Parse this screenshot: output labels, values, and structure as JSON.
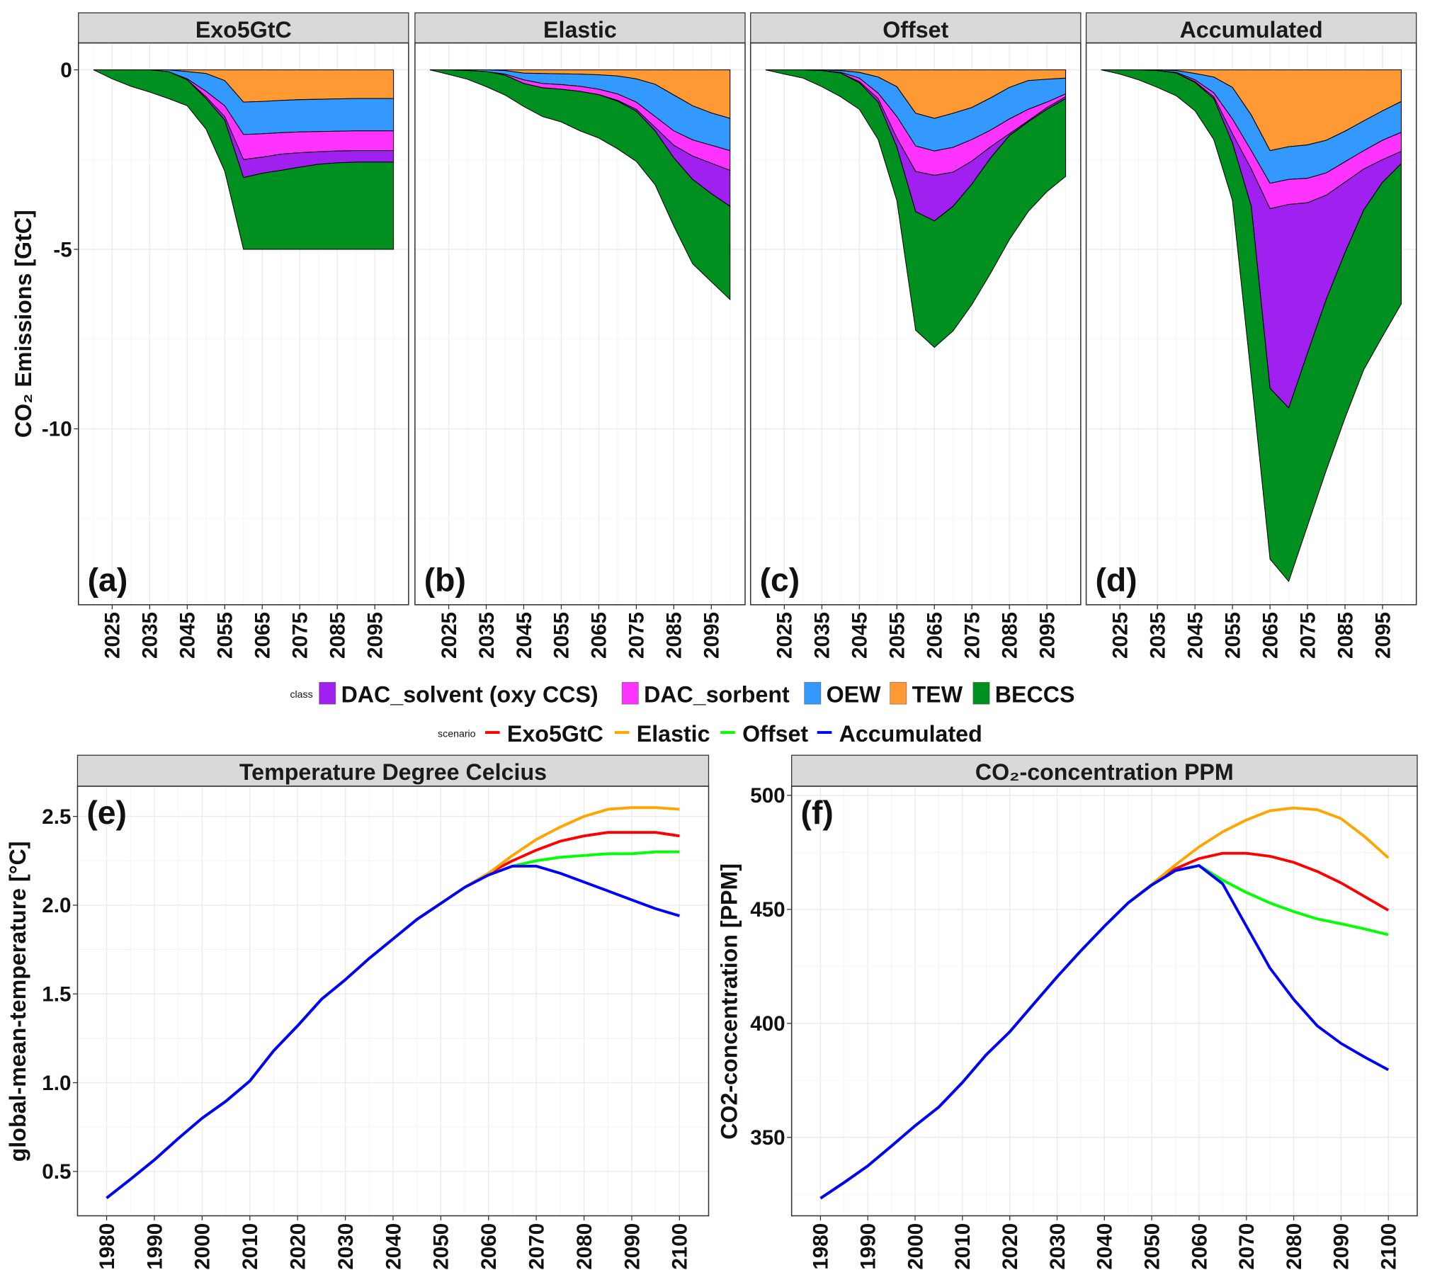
{
  "legend": {
    "class_title": "class",
    "class_items": [
      {
        "name": "DAC_solvent (oxy CCS)",
        "color": "#A020F0"
      },
      {
        "name": "DAC_sorbent",
        "color": "#FF33FF"
      },
      {
        "name": "OEW",
        "color": "#3399FF"
      },
      {
        "name": "TEW",
        "color": "#FF9933"
      },
      {
        "name": "BECCS",
        "color": "#009020"
      }
    ],
    "scenario_title": "scenario",
    "scenario_items": [
      {
        "name": "Exo5GtC",
        "color": "#FF0000"
      },
      {
        "name": "Elastic",
        "color": "#FFA500"
      },
      {
        "name": "Offset",
        "color": "#00FF00"
      },
      {
        "name": "Accumulated",
        "color": "#0000FF"
      }
    ]
  },
  "top_ylabel": "CO₂ Emissions [GtC]",
  "chart_data": [
    {
      "type": "area",
      "stacked": true,
      "title": "Exo5GtC",
      "panel_label": "(a)",
      "x": [
        2020,
        2025,
        2030,
        2035,
        2040,
        2045,
        2050,
        2055,
        2060,
        2065,
        2070,
        2075,
        2080,
        2085,
        2090,
        2095,
        2100
      ],
      "xticks": [
        "2025",
        "2035",
        "2045",
        "2055",
        "2065",
        "2075",
        "2085",
        "2095"
      ],
      "yticks": [
        "0",
        "-5",
        "-10"
      ],
      "ylim": [
        -14.9,
        0.75
      ],
      "grid": true,
      "series": [
        {
          "name": "TEW",
          "values": [
            0,
            0,
            0,
            0,
            0,
            -0.05,
            -0.1,
            -0.3,
            -0.9,
            -0.88,
            -0.85,
            -0.83,
            -0.82,
            -0.81,
            -0.8,
            -0.8,
            -0.8
          ]
        },
        {
          "name": "OEW",
          "values": [
            0,
            0,
            0,
            0,
            -0.05,
            -0.2,
            -0.5,
            -0.7,
            -0.9,
            -0.9,
            -0.9,
            -0.9,
            -0.9,
            -0.9,
            -0.9,
            -0.9,
            -0.9
          ]
        },
        {
          "name": "DAC_sorbent",
          "values": [
            0,
            0,
            0,
            0,
            0,
            -0.03,
            -0.15,
            -0.3,
            -0.7,
            -0.65,
            -0.6,
            -0.58,
            -0.56,
            -0.55,
            -0.55,
            -0.55,
            -0.55
          ]
        },
        {
          "name": "DAC_solvent (oxy CCS)",
          "values": [
            0,
            0,
            0,
            0,
            0,
            0,
            -0.05,
            -0.1,
            -0.5,
            -0.45,
            -0.45,
            -0.4,
            -0.35,
            -0.33,
            -0.32,
            -0.32,
            -0.32
          ]
        },
        {
          "name": "BECCS",
          "values": [
            0,
            -0.25,
            -0.46,
            -0.62,
            -0.75,
            -0.72,
            -0.85,
            -1.42,
            -2.0,
            -2.12,
            -2.2,
            -2.29,
            -2.37,
            -2.41,
            -2.43,
            -2.43,
            -2.43
          ]
        }
      ]
    },
    {
      "type": "area",
      "stacked": true,
      "title": "Elastic",
      "panel_label": "(b)",
      "x": [
        2020,
        2025,
        2030,
        2035,
        2040,
        2045,
        2050,
        2055,
        2060,
        2065,
        2070,
        2075,
        2080,
        2085,
        2090,
        2095,
        2100
      ],
      "xticks": [
        "2025",
        "2035",
        "2045",
        "2055",
        "2065",
        "2075",
        "2085",
        "2095"
      ],
      "ylim": [
        -14.9,
        0.75
      ],
      "grid": true,
      "series": [
        {
          "name": "TEW",
          "values": [
            0,
            0,
            0,
            0,
            -0.02,
            -0.09,
            -0.1,
            -0.11,
            -0.12,
            -0.14,
            -0.17,
            -0.25,
            -0.4,
            -0.7,
            -1.0,
            -1.2,
            -1.35
          ]
        },
        {
          "name": "OEW",
          "values": [
            0,
            0,
            -0.02,
            -0.05,
            -0.1,
            -0.19,
            -0.28,
            -0.3,
            -0.34,
            -0.4,
            -0.5,
            -0.65,
            -0.9,
            -1.0,
            -0.95,
            -0.9,
            -0.9
          ]
        },
        {
          "name": "DAC_sorbent",
          "values": [
            0,
            0,
            0,
            0,
            -0.03,
            -0.1,
            -0.12,
            -0.13,
            -0.14,
            -0.15,
            -0.18,
            -0.2,
            -0.3,
            -0.4,
            -0.45,
            -0.5,
            -0.55
          ]
        },
        {
          "name": "DAC_solvent (oxy CCS)",
          "values": [
            0,
            0,
            0,
            0,
            0,
            0,
            0,
            0,
            0,
            0,
            -0.02,
            -0.05,
            -0.1,
            -0.35,
            -0.65,
            -0.85,
            -1.0
          ]
        },
        {
          "name": "BECCS",
          "values": [
            0,
            -0.13,
            -0.24,
            -0.42,
            -0.55,
            -0.64,
            -0.8,
            -0.91,
            -1.1,
            -1.21,
            -1.33,
            -1.4,
            -1.5,
            -1.9,
            -2.35,
            -2.45,
            -2.6
          ]
        }
      ]
    },
    {
      "type": "area",
      "stacked": true,
      "title": "Offset",
      "panel_label": "(c)",
      "x": [
        2020,
        2025,
        2030,
        2035,
        2040,
        2045,
        2050,
        2055,
        2060,
        2065,
        2070,
        2075,
        2080,
        2085,
        2090,
        2095,
        2100
      ],
      "xticks": [
        "2025",
        "2035",
        "2045",
        "2055",
        "2065",
        "2075",
        "2085",
        "2095"
      ],
      "ylim": [
        -14.9,
        0.75
      ],
      "grid": true,
      "series": [
        {
          "name": "TEW",
          "values": [
            0,
            0,
            0,
            0,
            -0.02,
            -0.07,
            -0.2,
            -0.47,
            -1.21,
            -1.35,
            -1.21,
            -1.05,
            -0.78,
            -0.49,
            -0.3,
            -0.26,
            -0.23
          ]
        },
        {
          "name": "OEW",
          "values": [
            0,
            0,
            0,
            -0.02,
            -0.05,
            -0.16,
            -0.45,
            -0.83,
            -0.91,
            -0.91,
            -0.95,
            -0.89,
            -0.9,
            -0.88,
            -0.8,
            -0.64,
            -0.44
          ]
        },
        {
          "name": "DAC_sorbent",
          "values": [
            0,
            0,
            0,
            0,
            -0.02,
            -0.1,
            -0.15,
            -0.6,
            -0.71,
            -0.68,
            -0.69,
            -0.6,
            -0.46,
            -0.41,
            -0.32,
            -0.15,
            -0.08
          ]
        },
        {
          "name": "DAC_solvent (oxy CCS)",
          "values": [
            0,
            0,
            0,
            0,
            0,
            -0.03,
            -0.1,
            -0.25,
            -1.12,
            -1.27,
            -0.95,
            -0.64,
            -0.31,
            -0.05,
            -0.03,
            -0.05,
            -0.05
          ]
        },
        {
          "name": "BECCS",
          "values": [
            0,
            -0.12,
            -0.23,
            -0.45,
            -0.66,
            -0.74,
            -1.04,
            -1.49,
            -3.3,
            -3.52,
            -3.47,
            -3.36,
            -3.21,
            -2.9,
            -2.5,
            -2.29,
            -2.17
          ]
        }
      ]
    },
    {
      "type": "area",
      "stacked": true,
      "title": "Accumulated",
      "panel_label": "(d)",
      "x": [
        2020,
        2025,
        2030,
        2035,
        2040,
        2045,
        2050,
        2055,
        2060,
        2065,
        2070,
        2075,
        2080,
        2085,
        2090,
        2095,
        2100
      ],
      "xticks": [
        "2025",
        "2035",
        "2045",
        "2055",
        "2065",
        "2075",
        "2085",
        "2095"
      ],
      "ylim": [
        -14.9,
        0.75
      ],
      "grid": true,
      "series": [
        {
          "name": "TEW",
          "values": [
            0,
            0,
            0,
            0,
            -0.02,
            -0.1,
            -0.2,
            -0.49,
            -1.26,
            -2.25,
            -2.14,
            -2.09,
            -1.96,
            -1.71,
            -1.42,
            -1.14,
            -0.88
          ]
        },
        {
          "name": "OEW",
          "values": [
            0,
            0,
            0,
            -0.02,
            -0.05,
            -0.18,
            -0.44,
            -0.88,
            -0.99,
            -0.91,
            -0.91,
            -0.93,
            -0.91,
            -0.85,
            -0.83,
            -0.82,
            -0.86
          ]
        },
        {
          "name": "DAC_sorbent",
          "values": [
            0,
            0,
            0,
            0,
            -0.02,
            -0.05,
            -0.11,
            -0.41,
            -0.51,
            -0.71,
            -0.7,
            -0.68,
            -0.62,
            -0.57,
            -0.51,
            -0.54,
            -0.53
          ]
        },
        {
          "name": "DAC_solvent (oxy CCS)",
          "values": [
            0,
            0,
            0,
            0,
            0,
            -0.02,
            -0.05,
            -0.26,
            -1.04,
            -5.0,
            -5.67,
            -4.19,
            -2.9,
            -1.96,
            -1.14,
            -0.63,
            -0.34
          ]
        },
        {
          "name": "BECCS",
          "values": [
            0,
            -0.12,
            -0.28,
            -0.47,
            -0.63,
            -0.79,
            -1.14,
            -1.6,
            -4.76,
            -4.76,
            -4.83,
            -4.81,
            -4.76,
            -4.61,
            -4.45,
            -4.29,
            -3.91
          ]
        }
      ]
    },
    {
      "type": "line",
      "title": "Temperature Degree Celcius",
      "panel_label": "(e)",
      "ylabel": "global-mean-temperature [°C]",
      "x": [
        1980,
        1985,
        1990,
        1995,
        2000,
        2005,
        2010,
        2015,
        2020,
        2025,
        2030,
        2035,
        2040,
        2045,
        2050,
        2055,
        2060,
        2065,
        2070,
        2075,
        2080,
        2085,
        2090,
        2095,
        2100
      ],
      "xticks": [
        "1980",
        "1990",
        "2000",
        "2010",
        "2020",
        "2030",
        "2040",
        "2050",
        "2060",
        "2070",
        "2080",
        "2090",
        "2100"
      ],
      "yticks": [
        "0.5",
        "1.0",
        "1.5",
        "2.0",
        "2.5"
      ],
      "ylim": [
        0.25,
        2.67
      ],
      "grid": true,
      "series": [
        {
          "name": "Exo5GtC",
          "values": [
            0.35,
            0.456,
            0.565,
            0.685,
            0.8,
            0.896,
            1.01,
            1.18,
            1.32,
            1.47,
            1.58,
            1.7,
            1.81,
            1.92,
            2.01,
            2.1,
            2.18,
            2.25,
            2.31,
            2.36,
            2.39,
            2.41,
            2.41,
            2.41,
            2.39
          ]
        },
        {
          "name": "Elastic",
          "values": [
            0.35,
            0.456,
            0.565,
            0.685,
            0.8,
            0.896,
            1.01,
            1.18,
            1.32,
            1.47,
            1.58,
            1.7,
            1.81,
            1.92,
            2.01,
            2.1,
            2.18,
            2.28,
            2.37,
            2.44,
            2.5,
            2.54,
            2.55,
            2.55,
            2.54
          ]
        },
        {
          "name": "Offset",
          "values": [
            0.35,
            0.456,
            0.565,
            0.685,
            0.8,
            0.896,
            1.01,
            1.18,
            1.32,
            1.47,
            1.58,
            1.7,
            1.81,
            1.92,
            2.01,
            2.1,
            2.17,
            2.22,
            2.25,
            2.27,
            2.28,
            2.29,
            2.29,
            2.3,
            2.3
          ]
        },
        {
          "name": "Accumulated",
          "values": [
            0.35,
            0.456,
            0.565,
            0.685,
            0.8,
            0.896,
            1.01,
            1.18,
            1.32,
            1.47,
            1.58,
            1.7,
            1.81,
            1.92,
            2.01,
            2.1,
            2.17,
            2.22,
            2.22,
            2.18,
            2.13,
            2.08,
            2.03,
            1.98,
            1.94
          ]
        }
      ]
    },
    {
      "type": "line",
      "title": "CO₂-concentration PPM",
      "panel_label": "(f)",
      "ylabel": "CO2-concentration [PPM]",
      "x": [
        1980,
        1985,
        1990,
        1995,
        2000,
        2005,
        2010,
        2015,
        2020,
        2025,
        2030,
        2035,
        2040,
        2045,
        2050,
        2055,
        2060,
        2065,
        2070,
        2075,
        2080,
        2085,
        2090,
        2095,
        2100
      ],
      "xticks": [
        "1980",
        "1990",
        "2000",
        "2010",
        "2020",
        "2030",
        "2040",
        "2050",
        "2060",
        "2070",
        "2080",
        "2090",
        "2100"
      ],
      "yticks": [
        "350",
        "400",
        "450",
        "500"
      ],
      "ylim": [
        315.6,
        504
      ],
      "grid": true,
      "series": [
        {
          "name": "Exo5GtC",
          "values": [
            323.3,
            330.2,
            337.5,
            346.2,
            355.1,
            363.3,
            374.1,
            386.2,
            396.3,
            408.4,
            420.4,
            431.8,
            442.6,
            452.8,
            460.7,
            467.8,
            472.3,
            474.6,
            474.6,
            473.3,
            470.6,
            466.6,
            461.6,
            455.6,
            449.6
          ]
        },
        {
          "name": "Elastic",
          "values": [
            323.3,
            330.2,
            337.5,
            346.2,
            355.1,
            363.3,
            374.1,
            386.2,
            396.3,
            408.4,
            420.4,
            431.8,
            442.6,
            452.8,
            461,
            469.5,
            477.4,
            484,
            489.2,
            493.3,
            494.5,
            493.7,
            489.8,
            481.9,
            472.6
          ]
        },
        {
          "name": "Offset",
          "values": [
            323.3,
            330.2,
            337.5,
            346.2,
            355.1,
            363.3,
            374.1,
            386.2,
            396.3,
            408.4,
            420.4,
            431.8,
            442.6,
            452.8,
            460.7,
            467,
            469.2,
            462.8,
            457.4,
            452.8,
            449,
            445.8,
            443.7,
            441.4,
            438.9
          ]
        },
        {
          "name": "Accumulated",
          "values": [
            323.3,
            330.2,
            337.5,
            346.2,
            355.1,
            363.3,
            374.1,
            386.2,
            396.3,
            408.4,
            420.4,
            431.8,
            442.6,
            452.8,
            460.7,
            467,
            469.2,
            461.2,
            442.6,
            424.2,
            410.5,
            398.9,
            391.2,
            385.2,
            379.6
          ]
        }
      ]
    }
  ]
}
